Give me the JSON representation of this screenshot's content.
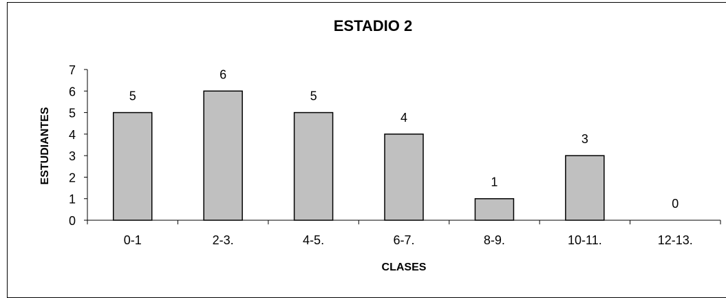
{
  "chart_data": {
    "type": "bar",
    "title": "ESTADIO 2",
    "xlabel": "CLASES",
    "ylabel": "ESTUDIANTES",
    "categories": [
      "0-1",
      "2-3.",
      "4-5.",
      "6-7.",
      "8-9.",
      "10-11.",
      "12-13."
    ],
    "values": [
      5,
      6,
      5,
      4,
      1,
      3,
      0
    ],
    "data_labels": [
      "5",
      "6",
      "5",
      "4",
      "1",
      "3",
      "0"
    ],
    "y_ticks": [
      "0",
      "1",
      "2",
      "3",
      "4",
      "5",
      "6",
      "7"
    ],
    "ylim": [
      0,
      7
    ],
    "grid": false,
    "legend": "none",
    "bar_color": "#c0c0c0",
    "bar_edge_color": "#000000"
  }
}
